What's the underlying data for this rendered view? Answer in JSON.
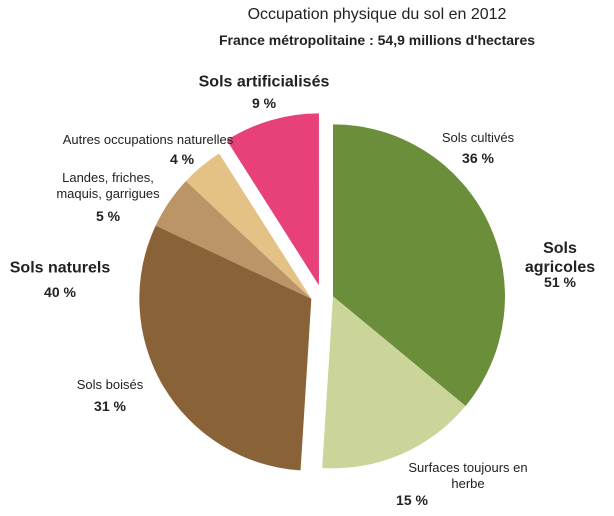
{
  "chart_data": {
    "type": "pie",
    "title": "Occupation physique du sol en 2012",
    "subtitle": "France métropolitaine : 54,9 millions d'hectares",
    "groups": [
      {
        "name": "Sols agricoles",
        "value": 51,
        "value_label": "51 %",
        "slices": {
          "labels": [
            "Sols cultivés",
            "Surfaces toujours en herbe"
          ],
          "values": [
            36,
            15
          ],
          "value_labels": [
            "36 %",
            "15 %"
          ],
          "colors": [
            "#6b8e3a",
            "#cbd59a"
          ]
        }
      },
      {
        "name": "Sols naturels",
        "value": 40,
        "value_label": "40 %",
        "slices": {
          "labels": [
            "Sols boisés",
            "Landes, friches, maquis, garrigues",
            "Autres occupations naturelles"
          ],
          "values": [
            31,
            5,
            4
          ],
          "value_labels": [
            "31 %",
            "5 %",
            "4 %"
          ],
          "colors": [
            "#8a6237",
            "#bb9468",
            "#e4c185"
          ]
        }
      },
      {
        "name": "Sols artificialisés",
        "value": 9,
        "value_label": "9 %",
        "color": "#e8417a"
      }
    ]
  }
}
